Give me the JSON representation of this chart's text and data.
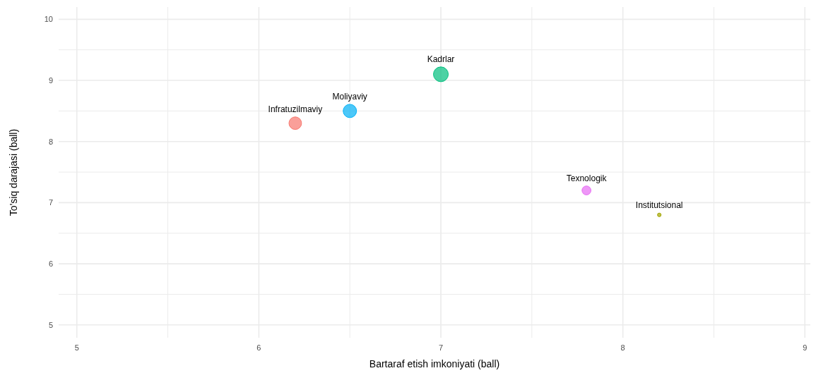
{
  "chart_data": {
    "type": "bubble",
    "xlabel": "Bartaraf etish imkoniyati (ball)",
    "ylabel": "To'siq darajasi (ball)",
    "x": [
      6.2,
      8.2,
      7.0,
      6.5,
      7.8
    ],
    "values": [
      8.3,
      6.8,
      9.1,
      8.5,
      7.2
    ],
    "sizes": [
      0.72,
      0.06,
      1,
      0.81,
      0.36
    ],
    "colors": [
      "#f8766d",
      "#a3a500",
      "#00bf7d",
      "#00b0f6",
      "#e76bf3"
    ],
    "annotations": [
      {
        "text": "Infratuzilmaviy",
        "x": 6.2,
        "y": 8.3
      },
      {
        "text": "Institutsional",
        "x": 8.2,
        "y": 6.8
      },
      {
        "text": "Kadrlar",
        "x": 7.0,
        "y": 9.1
      },
      {
        "text": "Moliyaviy",
        "x": 6.5,
        "y": 8.5
      },
      {
        "text": "Texnologik",
        "x": 7.8,
        "y": 7.2
      }
    ],
    "xlim": [
      4.9,
      9.03
    ],
    "ylim": [
      4.79,
      10.2
    ],
    "xticks": [
      5,
      {
        "value": 5.5,
        "label": null
      },
      6,
      {
        "value": 6.5,
        "label": null
      },
      7,
      {
        "value": 7.5,
        "label": null
      },
      8,
      {
        "value": 8.5,
        "label": null
      },
      9
    ],
    "yticks": [
      5,
      {
        "value": 5.5,
        "label": null
      },
      6,
      {
        "value": 6.5,
        "label": null
      },
      7,
      {
        "value": 7.5,
        "label": null
      },
      8,
      {
        "value": 8.5,
        "label": null
      },
      9,
      {
        "value": 9.5,
        "label": null
      },
      10
    ],
    "grid": true
  }
}
